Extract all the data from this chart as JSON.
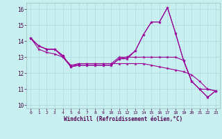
{
  "xlabel": "Windchill (Refroidissement éolien,°C)",
  "bg_color": "#c8f0f0",
  "line_color": "#990099",
  "grid_color": "#b0dede",
  "ylim": [
    9.8,
    16.4
  ],
  "xlim": [
    -0.5,
    23.5
  ],
  "yticks": [
    10,
    11,
    12,
    13,
    14,
    15,
    16
  ],
  "xticks": [
    0,
    1,
    2,
    3,
    4,
    5,
    6,
    7,
    8,
    9,
    10,
    11,
    12,
    13,
    14,
    15,
    16,
    17,
    18,
    19,
    20,
    21,
    22,
    23
  ],
  "hours": [
    0,
    1,
    2,
    3,
    4,
    5,
    6,
    7,
    8,
    9,
    10,
    11,
    12,
    13,
    14,
    15,
    16,
    17,
    18,
    19,
    20,
    21,
    22,
    23
  ],
  "series1": [
    14.2,
    13.7,
    13.5,
    13.5,
    13.1,
    12.4,
    12.5,
    12.5,
    12.5,
    12.5,
    12.5,
    12.9,
    12.9,
    13.4,
    14.4,
    15.2,
    15.2,
    16.1,
    14.5,
    12.8,
    11.5,
    11.0,
    10.5,
    10.9
  ],
  "series2": [
    14.2,
    13.7,
    13.5,
    13.5,
    13.1,
    12.4,
    12.5,
    12.5,
    12.5,
    12.5,
    12.5,
    12.9,
    13.0,
    13.4,
    14.4,
    15.2,
    15.2,
    16.1,
    14.5,
    12.8,
    11.5,
    11.0,
    10.5,
    10.9
  ],
  "series3": [
    14.2,
    13.7,
    13.5,
    13.5,
    13.0,
    12.4,
    12.6,
    12.6,
    12.6,
    12.6,
    12.6,
    13.0,
    13.0,
    13.0,
    13.0,
    13.0,
    13.0,
    13.0,
    13.0,
    12.8,
    11.5,
    11.0,
    11.0,
    10.9
  ],
  "series4": [
    14.2,
    13.5,
    13.3,
    13.2,
    13.0,
    12.5,
    12.6,
    12.6,
    12.6,
    12.6,
    12.6,
    12.6,
    12.6,
    12.6,
    12.6,
    12.5,
    12.4,
    12.3,
    12.2,
    12.1,
    11.9,
    11.5,
    11.0,
    10.9
  ]
}
